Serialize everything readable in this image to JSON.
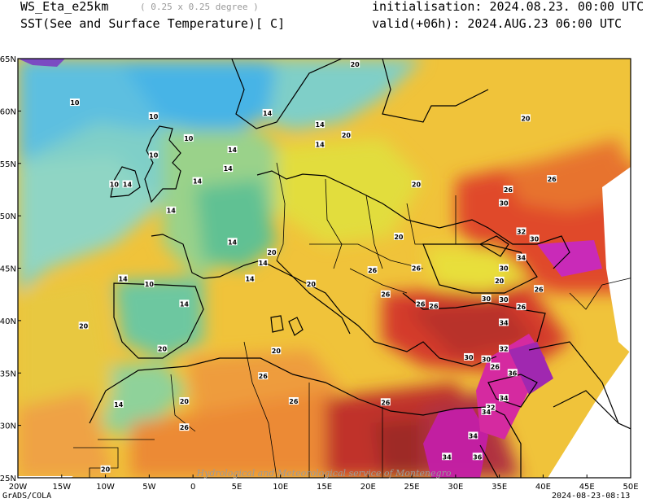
{
  "header": {
    "model": "WS_Eta_e25km",
    "resolution": "( 0.25 x 0.25 degree )",
    "field": "SST(See and Surface Temperature)[ C]",
    "initialisation": "initialisation: 2024.08.23. 00:00 UTC",
    "valid": "valid(+06h): 2024.AUG.23 06:00 UTC"
  },
  "map": {
    "lat_labels": [
      "65N",
      "60N",
      "55N",
      "50N",
      "45N",
      "40N",
      "35N",
      "30N",
      "25N"
    ],
    "lon_labels": [
      "20W",
      "15W",
      "10W",
      "5W",
      "0",
      "5E",
      "10E",
      "15E",
      "20E",
      "25E",
      "30E",
      "35E",
      "40E",
      "45E",
      "50E"
    ],
    "watermark": "Hydrological and Meteorological service of Montenegro",
    "contour_labels": [
      {
        "label": "20",
        "lon": 18.5,
        "lat": 65.2
      },
      {
        "label": "10",
        "lon": -13.5,
        "lat": 60.8
      },
      {
        "label": "10",
        "lon": -4.5,
        "lat": 59.5
      },
      {
        "label": "10",
        "lon": -0.5,
        "lat": 57.4
      },
      {
        "label": "14",
        "lon": 8.5,
        "lat": 59.8
      },
      {
        "label": "14",
        "lon": 4.5,
        "lat": 56.3
      },
      {
        "label": "14",
        "lon": 4.0,
        "lat": 54.5
      },
      {
        "label": "14",
        "lon": 0.5,
        "lat": 53.3
      },
      {
        "label": "14",
        "lon": -2.5,
        "lat": 50.5
      },
      {
        "label": "14",
        "lon": -7.5,
        "lat": 53.0
      },
      {
        "label": "10",
        "lon": -9.0,
        "lat": 53.0
      },
      {
        "label": "10",
        "lon": -4.5,
        "lat": 55.8
      },
      {
        "label": "14",
        "lon": 14.5,
        "lat": 58.7
      },
      {
        "label": "14",
        "lon": 14.5,
        "lat": 56.8
      },
      {
        "label": "20",
        "lon": 17.5,
        "lat": 57.7
      },
      {
        "label": "20",
        "lon": 25.5,
        "lat": 53.0
      },
      {
        "label": "20",
        "lon": 23.5,
        "lat": 48.0
      },
      {
        "label": "20",
        "lon": 38.0,
        "lat": 59.3
      },
      {
        "label": "26",
        "lon": 41.0,
        "lat": 53.5
      },
      {
        "label": "26",
        "lon": 36.0,
        "lat": 52.5
      },
      {
        "label": "30",
        "lon": 35.5,
        "lat": 51.2
      },
      {
        "label": "32",
        "lon": 37.5,
        "lat": 48.5
      },
      {
        "label": "30",
        "lon": 39.0,
        "lat": 47.8
      },
      {
        "label": "34",
        "lon": 37.5,
        "lat": 46.0
      },
      {
        "label": "30",
        "lon": 35.5,
        "lat": 45.0
      },
      {
        "label": "26",
        "lon": 25.5,
        "lat": 45.0
      },
      {
        "label": "20",
        "lon": 35.0,
        "lat": 43.8
      },
      {
        "label": "26",
        "lon": 39.5,
        "lat": 43.0
      },
      {
        "label": "30",
        "lon": 33.5,
        "lat": 42.1
      },
      {
        "label": "30",
        "lon": 35.5,
        "lat": 42.0
      },
      {
        "label": "26",
        "lon": 37.5,
        "lat": 41.3
      },
      {
        "label": "26",
        "lon": 26.0,
        "lat": 41.6
      },
      {
        "label": "26",
        "lon": 27.5,
        "lat": 41.4
      },
      {
        "label": "34",
        "lon": 35.5,
        "lat": 39.8
      },
      {
        "label": "32",
        "lon": 35.5,
        "lat": 37.3
      },
      {
        "label": "30",
        "lon": 31.5,
        "lat": 36.5
      },
      {
        "label": "30",
        "lon": 33.5,
        "lat": 36.3
      },
      {
        "label": "26",
        "lon": 34.5,
        "lat": 35.6
      },
      {
        "label": "36",
        "lon": 36.5,
        "lat": 35.0
      },
      {
        "label": "34",
        "lon": 35.5,
        "lat": 32.6
      },
      {
        "label": "32",
        "lon": 34.0,
        "lat": 31.7
      },
      {
        "label": "34",
        "lon": 33.5,
        "lat": 31.3
      },
      {
        "label": "34",
        "lon": 32.0,
        "lat": 29.0
      },
      {
        "label": "34",
        "lon": 29.0,
        "lat": 27.0
      },
      {
        "label": "36",
        "lon": 32.5,
        "lat": 27.0
      },
      {
        "label": "26",
        "lon": 20.5,
        "lat": 44.8
      },
      {
        "label": "26",
        "lon": 22.0,
        "lat": 42.5
      },
      {
        "label": "20",
        "lon": 13.5,
        "lat": 43.5
      },
      {
        "label": "20",
        "lon": 9.0,
        "lat": 46.5
      },
      {
        "label": "14",
        "lon": 8.0,
        "lat": 45.5
      },
      {
        "label": "14",
        "lon": 4.5,
        "lat": 47.5
      },
      {
        "label": "14",
        "lon": 6.5,
        "lat": 44.0
      },
      {
        "label": "14",
        "lon": -8.0,
        "lat": 44.0
      },
      {
        "label": "10",
        "lon": -5.0,
        "lat": 43.5
      },
      {
        "label": "14",
        "lon": -1.0,
        "lat": 41.6
      },
      {
        "label": "20",
        "lon": -12.5,
        "lat": 39.5
      },
      {
        "label": "20",
        "lon": -3.5,
        "lat": 37.3
      },
      {
        "label": "20",
        "lon": 9.5,
        "lat": 37.1
      },
      {
        "label": "26",
        "lon": 8.0,
        "lat": 34.7
      },
      {
        "label": "20",
        "lon": -1.0,
        "lat": 32.3
      },
      {
        "label": "14",
        "lon": -8.5,
        "lat": 32.0
      },
      {
        "label": "26",
        "lon": -1.0,
        "lat": 29.8
      },
      {
        "label": "26",
        "lon": 11.5,
        "lat": 32.3
      },
      {
        "label": "26",
        "lon": 22.0,
        "lat": 32.2
      },
      {
        "label": "20",
        "lon": -10.0,
        "lat": 25.8
      }
    ]
  },
  "footer": {
    "left": "GrADS/COLA",
    "right": "2024-08-23-08:13"
  }
}
